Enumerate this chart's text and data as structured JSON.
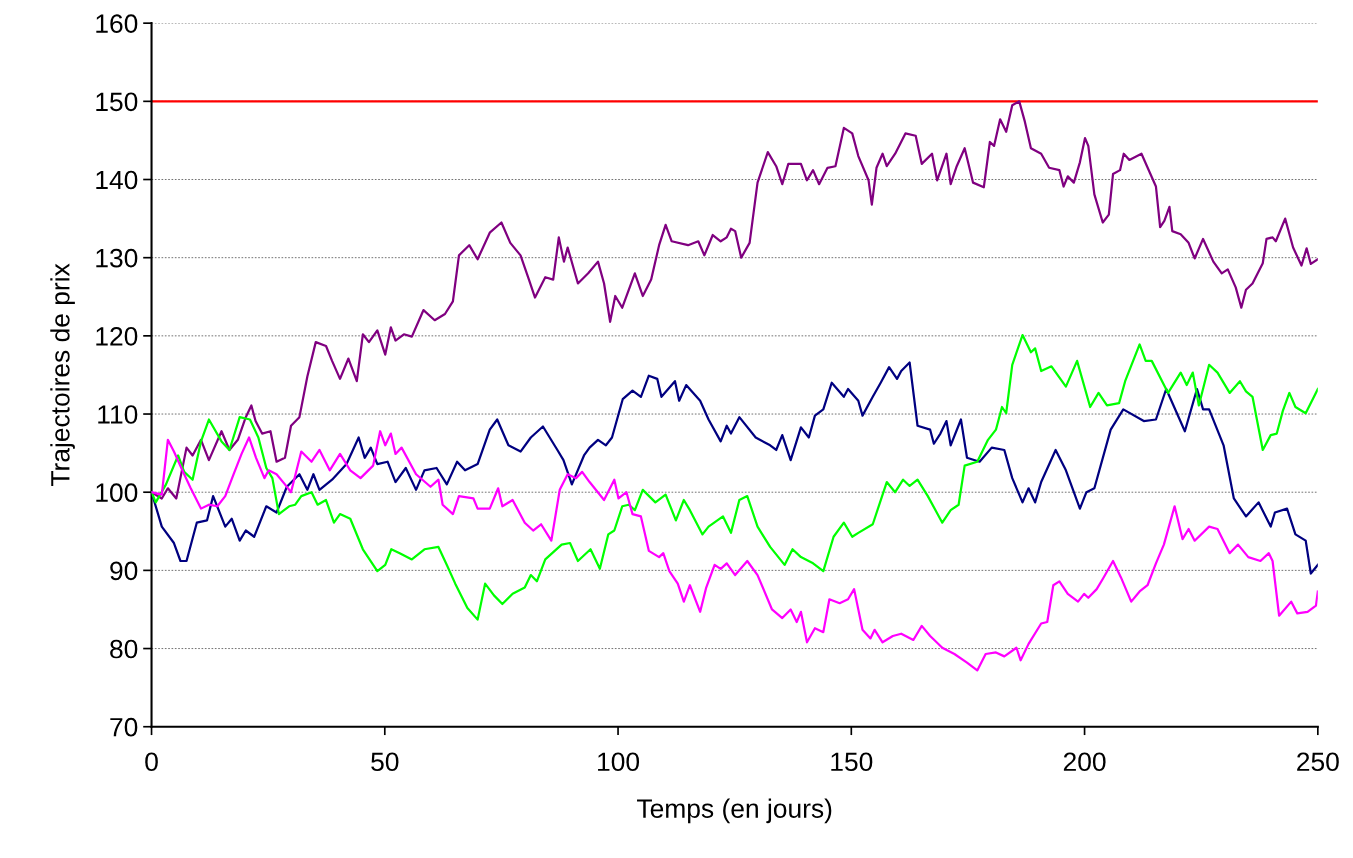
{
  "chart_data": {
    "type": "line",
    "xlabel": "Temps (en jours)",
    "ylabel": "Trajectoires de prix",
    "xlim": [
      0,
      250
    ],
    "xticks": [
      0,
      50,
      100,
      150,
      200,
      250
    ],
    "ylim": [
      70,
      160
    ],
    "yticks": [
      70,
      80,
      90,
      100,
      110,
      120,
      130,
      140,
      150,
      160
    ],
    "grid": "y",
    "marker": "none",
    "line_style": "solid",
    "ref_lines": [
      {
        "axis": "y",
        "value": 150,
        "color": "#ff0000",
        "line_style": "solid"
      }
    ],
    "series": [
      {
        "color": "#800080",
        "x": [
          0,
          2.2,
          3.5,
          5.3,
          7.5,
          8.8,
          10.6,
          12.3,
          15,
          16.7,
          18.5,
          20.2,
          21.4,
          22.3,
          23.7,
          25.5,
          26.8,
          28.6,
          29.9,
          31.7,
          33.4,
          35.2,
          37.4,
          38.7,
          40.4,
          42.2,
          44,
          45.3,
          46.6,
          48.4,
          50.1,
          51.3,
          52.3,
          54.1,
          55.8,
          58.3,
          60.7,
          62.9,
          64.6,
          65.9,
          68.1,
          69.9,
          72.5,
          75,
          76.9,
          79.1,
          80.9,
          82.2,
          84.4,
          86.1,
          87.3,
          88.4,
          89.2,
          91.4,
          93.6,
          95.7,
          97,
          98.3,
          99.4,
          100.9,
          103.6,
          105.3,
          107.1,
          108.8,
          110.2,
          111.5,
          115,
          117.2,
          118.5,
          120.3,
          122,
          123.3,
          124.2,
          125.1,
          126.4,
          128.2,
          129.9,
          132.1,
          133.9,
          135.2,
          136.5,
          139.2,
          140.5,
          141.8,
          143.1,
          144.9,
          146.6,
          148.4,
          150.2,
          151.5,
          153.7,
          154.4,
          155.4,
          156.7,
          157.6,
          159.4,
          161.6,
          163.8,
          165.1,
          167.3,
          168.4,
          170.4,
          171.3,
          172.6,
          174.3,
          176.1,
          178.4,
          179.7,
          180.6,
          181.9,
          183.2,
          184.5,
          186,
          187.2,
          188.5,
          190.7,
          192.4,
          194.6,
          195.5,
          196.4,
          197.7,
          199,
          200.1,
          200.8,
          202.1,
          203.9,
          205.2,
          206.1,
          207.6,
          208.4,
          209.6,
          212.2,
          215.3,
          216.2,
          217.1,
          218.2,
          218.8,
          220.6,
          222.3,
          223.6,
          225.4,
          227.6,
          229.4,
          230.7,
          232.4,
          233.6,
          234.6,
          236,
          238.2,
          239,
          240.3,
          241,
          243,
          244.7,
          246.5,
          247.6,
          248.5,
          250
        ],
        "values": [
          100,
          99.2,
          100.5,
          99.2,
          105.7,
          104.7,
          106.7,
          104.1,
          107.8,
          105.4,
          106.7,
          109.6,
          111.1,
          109.1,
          107.5,
          107.8,
          103.9,
          104.4,
          108.5,
          109.6,
          114.8,
          119.2,
          118.7,
          116.8,
          114.5,
          117.1,
          114.2,
          120.2,
          119.2,
          120.7,
          117.6,
          121.1,
          119.4,
          120.2,
          119.9,
          123.3,
          122,
          122.8,
          124.4,
          130.3,
          131.6,
          129.8,
          133.2,
          134.5,
          131.9,
          130.3,
          127.2,
          124.9,
          127.5,
          127.2,
          132.6,
          129.5,
          131.3,
          126.7,
          128,
          129.5,
          126.7,
          121.8,
          125.1,
          123.6,
          128,
          125.1,
          127.2,
          131.6,
          134.2,
          132.1,
          131.6,
          132.1,
          130.3,
          132.9,
          132.1,
          132.6,
          133.7,
          133.4,
          130,
          131.9,
          139.6,
          143.5,
          141.7,
          139.4,
          142,
          142,
          139.9,
          141.2,
          139.4,
          141.5,
          141.7,
          146.6,
          145.9,
          143,
          139.9,
          136.8,
          141.5,
          143.3,
          141.7,
          143.3,
          145.9,
          145.6,
          142,
          143.3,
          139.9,
          143.3,
          139.4,
          141.7,
          144,
          139.6,
          139,
          144.8,
          144.3,
          147.7,
          146.1,
          149.5,
          150,
          147.4,
          144,
          143.3,
          141.5,
          141.2,
          139.1,
          140.4,
          139.6,
          142.2,
          145.3,
          144.3,
          138.1,
          134.5,
          135.5,
          140.7,
          141.2,
          143.3,
          142.5,
          143.3,
          139.1,
          133.9,
          134.7,
          136.5,
          133.4,
          133,
          131.9,
          129.9,
          132.4,
          129.5,
          128,
          128.5,
          126.2,
          123.6,
          125.9,
          126.7,
          129.3,
          132.4,
          132.6,
          132.1,
          135,
          131.3,
          129,
          131.2,
          129.2,
          129.8
        ]
      },
      {
        "color": "#000080",
        "x": [
          0,
          2.2,
          4.8,
          6.2,
          7.5,
          9.7,
          11.9,
          13.2,
          15.8,
          17.2,
          18.9,
          20.2,
          22,
          24.6,
          26.8,
          29,
          31.7,
          33.4,
          34.7,
          36,
          38.7,
          41.8,
          44.4,
          45.7,
          47,
          48.4,
          50.6,
          52.3,
          54.5,
          56.7,
          58.5,
          61.1,
          63.3,
          65.5,
          67.2,
          69.9,
          72.5,
          74.1,
          76.5,
          79.1,
          81.3,
          83.9,
          87,
          88.3,
          90.1,
          92.7,
          93.9,
          95.7,
          97.4,
          98.7,
          101,
          103.1,
          104.9,
          106.6,
          108.4,
          109.3,
          112.2,
          113.1,
          114.6,
          117.6,
          119.4,
          122,
          123.3,
          124.2,
          126,
          129.5,
          132.6,
          133.9,
          135.2,
          137,
          139.2,
          140.9,
          142.2,
          144,
          145.8,
          148.4,
          149.3,
          151.5,
          152.4,
          154.6,
          156.3,
          158.1,
          159.8,
          160.7,
          162.5,
          164.2,
          166.9,
          167.7,
          169.1,
          170.4,
          171.3,
          173.5,
          174.8,
          177.5,
          180.1,
          182.8,
          184.5,
          186.7,
          188,
          189.4,
          190.7,
          193.8,
          196,
          199,
          200.4,
          202.1,
          205.6,
          208.3,
          212.7,
          215.3,
          217.5,
          221.5,
          224.1,
          225.4,
          226.7,
          229.8,
          232,
          234.6,
          237.3,
          239.9,
          240.8,
          243.4,
          245.2,
          247.4,
          248.5,
          250
        ],
        "values": [
          100,
          95.6,
          93.5,
          91.2,
          91.2,
          96.1,
          96.4,
          99.5,
          95.6,
          96.6,
          93.8,
          95.1,
          94.3,
          98.2,
          97.4,
          100.7,
          102.3,
          100.3,
          102.3,
          100.3,
          101.6,
          103.6,
          107,
          104.4,
          105.7,
          103.6,
          103.9,
          101.3,
          103.1,
          100.3,
          102.8,
          103.1,
          101,
          103.9,
          102.8,
          103.6,
          108,
          109.3,
          106,
          105.2,
          107,
          108.4,
          105.4,
          104.1,
          101,
          104.7,
          105.7,
          106.7,
          106,
          107,
          111.9,
          113,
          112.2,
          114.9,
          114.5,
          112.2,
          114.2,
          111.7,
          113.7,
          111.7,
          109.3,
          106.5,
          108.5,
          107.5,
          109.6,
          107,
          106,
          105.4,
          107.3,
          104.1,
          108.3,
          107,
          109.8,
          110.6,
          114,
          112.2,
          113.2,
          111.7,
          109.8,
          112.2,
          114,
          116,
          114.5,
          115.5,
          116.6,
          108.5,
          108,
          106.2,
          107.5,
          109.1,
          106,
          109.3,
          104.4,
          103.9,
          105.7,
          105.4,
          101.8,
          98.7,
          100.5,
          98.7,
          101.3,
          105.4,
          102.8,
          97.9,
          100,
          100.5,
          108,
          110.6,
          109.1,
          109.3,
          113.2,
          107.8,
          113.2,
          110.6,
          110.6,
          106,
          99.2,
          96.9,
          98.7,
          95.6,
          97.4,
          97.9,
          94.6,
          93.8,
          89.6,
          90.7
        ]
      },
      {
        "color": "#00ff00",
        "x": [
          0,
          0.9,
          3.1,
          5.7,
          7,
          8.8,
          10.6,
          12.3,
          15,
          16.7,
          18.9,
          21.1,
          22.9,
          24.6,
          25.9,
          27.3,
          29.5,
          30.8,
          32.1,
          34.3,
          35.6,
          37.4,
          39.1,
          40.4,
          42.6,
          45.3,
          48.4,
          50.1,
          51.4,
          53.2,
          55.8,
          58.5,
          61.5,
          63.3,
          65.1,
          67.7,
          69.9,
          71.5,
          73.4,
          75.2,
          77.4,
          80,
          81.3,
          82.6,
          84.4,
          87.9,
          89.7,
          91.4,
          94.1,
          96.1,
          97.9,
          99.2,
          100.9,
          102.3,
          103.6,
          105.3,
          108,
          110.2,
          112.4,
          114.1,
          115.4,
          118.1,
          119.4,
          122.5,
          124.2,
          126,
          127.7,
          129.9,
          132.6,
          135.7,
          137.4,
          139.2,
          141.8,
          144,
          146.2,
          148.4,
          150.2,
          151.5,
          154.6,
          157.6,
          159.4,
          161.1,
          162.5,
          164.2,
          166.4,
          169.5,
          171.3,
          173,
          174.3,
          177,
          179.3,
          181,
          182.3,
          183.2,
          184.5,
          186.7,
          188.5,
          189.4,
          190.7,
          192.9,
          196,
          198.4,
          201.2,
          203,
          204.8,
          207.4,
          208.7,
          211.8,
          213.1,
          214.4,
          217.9,
          220.6,
          221.9,
          223.2,
          224.5,
          226.7,
          228.5,
          231.1,
          233.3,
          234.6,
          236,
          238.2,
          239.9,
          241.2,
          242.5,
          243.9,
          245.2,
          247.4,
          250
        ],
        "values": [
          100,
          98.7,
          101,
          104.7,
          102.6,
          101.6,
          106.5,
          109.3,
          106.5,
          105.4,
          109.6,
          109.3,
          107,
          103.1,
          101.8,
          97.2,
          98.2,
          98.4,
          99.5,
          100,
          98.4,
          99,
          96.1,
          97.2,
          96.6,
          92.7,
          89.9,
          90.7,
          92.7,
          92.2,
          91.4,
          92.7,
          93,
          90.7,
          88.3,
          85.2,
          83.7,
          88.3,
          86.8,
          85.7,
          87,
          87.8,
          89.4,
          88.6,
          91.4,
          93.3,
          93.5,
          91.2,
          92.7,
          90.2,
          94.6,
          95.1,
          98.2,
          98.4,
          97.7,
          100.3,
          98.7,
          99.7,
          96.4,
          99,
          97.7,
          94.6,
          95.6,
          96.9,
          94.8,
          99,
          99.5,
          95.6,
          93,
          90.7,
          92.7,
          91.7,
          90.9,
          89.9,
          94.3,
          96.1,
          94.3,
          94.8,
          95.9,
          101.3,
          100,
          101.6,
          100.8,
          101.6,
          99.5,
          96.1,
          97.7,
          98.4,
          103.4,
          103.9,
          106.7,
          108,
          110.9,
          110.1,
          116.3,
          120.1,
          117.9,
          118.4,
          115.5,
          116.1,
          113.5,
          116.8,
          110.9,
          112.7,
          111.1,
          111.4,
          114.2,
          118.9,
          116.8,
          116.8,
          112.7,
          115.3,
          113.7,
          115.3,
          111.1,
          116.3,
          115.3,
          112.7,
          114.2,
          112.9,
          112.2,
          105.4,
          107.3,
          107.5,
          110.4,
          112.7,
          110.9,
          110.1,
          113.2
        ]
      },
      {
        "color": "#ff00ff",
        "x": [
          0,
          2.2,
          3.5,
          4.8,
          6.6,
          8.4,
          10.6,
          12.3,
          14.1,
          15.8,
          17.6,
          19.3,
          20.9,
          22.4,
          24.2,
          25.1,
          26.8,
          28.6,
          29.9,
          32.1,
          34.3,
          36,
          38.2,
          40.4,
          42.6,
          44.8,
          47.5,
          49,
          50.1,
          51.3,
          52.3,
          53.6,
          56.7,
          59.8,
          61.5,
          62.4,
          64.6,
          65.9,
          69,
          69.9,
          72.5,
          74.3,
          75.2,
          77.4,
          80,
          81.8,
          83.5,
          85.7,
          87.5,
          89.2,
          91,
          92.3,
          93.9,
          97,
          99.2,
          100.1,
          101.8,
          103.1,
          104.9,
          106.6,
          108.8,
          109.7,
          111,
          112.8,
          114.1,
          115.4,
          117.6,
          118.9,
          120.7,
          122,
          123.3,
          125.1,
          127.7,
          129.9,
          133,
          135.2,
          137,
          138.3,
          139.2,
          140.5,
          142.2,
          144,
          145.3,
          147.5,
          149.3,
          150.6,
          152.4,
          154.1,
          155,
          156.7,
          158.9,
          160.7,
          163.3,
          165.1,
          166.9,
          169.5,
          172.1,
          174.8,
          177,
          178.8,
          181,
          182.8,
          185.4,
          186.3,
          188,
          190.7,
          192,
          193.3,
          194.6,
          196.4,
          198.6,
          199.9,
          200.8,
          202.6,
          203.9,
          206.1,
          207.8,
          210,
          211.8,
          213.5,
          215.3,
          217,
          219.3,
          221,
          222.3,
          223.6,
          226.7,
          228.5,
          231.1,
          232.9,
          235.1,
          237.7,
          239.5,
          240.3,
          241.7,
          244.3,
          245.6,
          247.8,
          249.6,
          250
        ],
        "values": [
          100,
          99.7,
          106.7,
          105.2,
          102.8,
          100.5,
          97.9,
          98.4,
          98.2,
          99.5,
          102.3,
          104.9,
          107,
          104.4,
          101.8,
          102.8,
          102.3,
          101,
          100,
          105.2,
          103.9,
          105.4,
          102.8,
          104.9,
          102.8,
          101.8,
          103.4,
          107.8,
          106,
          107.5,
          104.9,
          105.7,
          102.3,
          100.7,
          101.6,
          98.4,
          97.2,
          99.5,
          99.2,
          97.9,
          97.9,
          100.5,
          98.2,
          99,
          96.1,
          95.1,
          95.9,
          93.8,
          100.3,
          102.3,
          101.8,
          102.6,
          101.3,
          99,
          101.6,
          99.2,
          100,
          97.2,
          96.9,
          92.5,
          91.7,
          92.2,
          89.9,
          88.3,
          86,
          88.1,
          84.7,
          87.8,
          90.7,
          90.2,
          90.9,
          89.4,
          91.2,
          89.4,
          85,
          83.9,
          85,
          83.4,
          84.7,
          80.8,
          82.6,
          82.1,
          86.3,
          85.8,
          86.3,
          87.6,
          82.4,
          81.3,
          82.4,
          80.8,
          81.6,
          81.9,
          81.1,
          82.9,
          81.6,
          80.1,
          79.3,
          78.2,
          77.2,
          79.3,
          79.5,
          79,
          80.1,
          78.5,
          80.6,
          83.2,
          83.4,
          88.1,
          88.6,
          87,
          86,
          87,
          86.5,
          87.6,
          88.9,
          91.2,
          89.1,
          86,
          87.3,
          88.1,
          90.9,
          93.3,
          98.2,
          94,
          95.3,
          93.8,
          95.6,
          95.3,
          92.2,
          93.3,
          91.7,
          91.2,
          92.2,
          91.2,
          84.2,
          86,
          84.5,
          84.7,
          85.5,
          87.3
        ]
      }
    ]
  }
}
